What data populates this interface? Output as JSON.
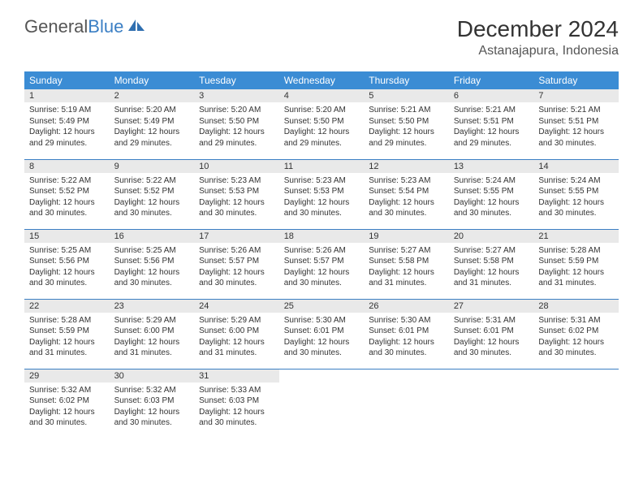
{
  "brand": {
    "part1": "General",
    "part2": "Blue"
  },
  "title": "December 2024",
  "location": "Astanajapura, Indonesia",
  "colors": {
    "header_bg": "#3b8cd4",
    "daynum_bg": "#e9e9e9",
    "rule": "#3b7fc4"
  },
  "fonts": {
    "title_pt": 28,
    "location_pt": 16,
    "weekday_pt": 12,
    "daynum_pt": 11,
    "body_pt": 10
  },
  "weekdays": [
    "Sunday",
    "Monday",
    "Tuesday",
    "Wednesday",
    "Thursday",
    "Friday",
    "Saturday"
  ],
  "weeks": [
    [
      {
        "n": "1",
        "sr": "Sunrise: 5:19 AM",
        "ss": "Sunset: 5:49 PM",
        "d1": "Daylight: 12 hours",
        "d2": "and 29 minutes."
      },
      {
        "n": "2",
        "sr": "Sunrise: 5:20 AM",
        "ss": "Sunset: 5:49 PM",
        "d1": "Daylight: 12 hours",
        "d2": "and 29 minutes."
      },
      {
        "n": "3",
        "sr": "Sunrise: 5:20 AM",
        "ss": "Sunset: 5:50 PM",
        "d1": "Daylight: 12 hours",
        "d2": "and 29 minutes."
      },
      {
        "n": "4",
        "sr": "Sunrise: 5:20 AM",
        "ss": "Sunset: 5:50 PM",
        "d1": "Daylight: 12 hours",
        "d2": "and 29 minutes."
      },
      {
        "n": "5",
        "sr": "Sunrise: 5:21 AM",
        "ss": "Sunset: 5:50 PM",
        "d1": "Daylight: 12 hours",
        "d2": "and 29 minutes."
      },
      {
        "n": "6",
        "sr": "Sunrise: 5:21 AM",
        "ss": "Sunset: 5:51 PM",
        "d1": "Daylight: 12 hours",
        "d2": "and 29 minutes."
      },
      {
        "n": "7",
        "sr": "Sunrise: 5:21 AM",
        "ss": "Sunset: 5:51 PM",
        "d1": "Daylight: 12 hours",
        "d2": "and 30 minutes."
      }
    ],
    [
      {
        "n": "8",
        "sr": "Sunrise: 5:22 AM",
        "ss": "Sunset: 5:52 PM",
        "d1": "Daylight: 12 hours",
        "d2": "and 30 minutes."
      },
      {
        "n": "9",
        "sr": "Sunrise: 5:22 AM",
        "ss": "Sunset: 5:52 PM",
        "d1": "Daylight: 12 hours",
        "d2": "and 30 minutes."
      },
      {
        "n": "10",
        "sr": "Sunrise: 5:23 AM",
        "ss": "Sunset: 5:53 PM",
        "d1": "Daylight: 12 hours",
        "d2": "and 30 minutes."
      },
      {
        "n": "11",
        "sr": "Sunrise: 5:23 AM",
        "ss": "Sunset: 5:53 PM",
        "d1": "Daylight: 12 hours",
        "d2": "and 30 minutes."
      },
      {
        "n": "12",
        "sr": "Sunrise: 5:23 AM",
        "ss": "Sunset: 5:54 PM",
        "d1": "Daylight: 12 hours",
        "d2": "and 30 minutes."
      },
      {
        "n": "13",
        "sr": "Sunrise: 5:24 AM",
        "ss": "Sunset: 5:55 PM",
        "d1": "Daylight: 12 hours",
        "d2": "and 30 minutes."
      },
      {
        "n": "14",
        "sr": "Sunrise: 5:24 AM",
        "ss": "Sunset: 5:55 PM",
        "d1": "Daylight: 12 hours",
        "d2": "and 30 minutes."
      }
    ],
    [
      {
        "n": "15",
        "sr": "Sunrise: 5:25 AM",
        "ss": "Sunset: 5:56 PM",
        "d1": "Daylight: 12 hours",
        "d2": "and 30 minutes."
      },
      {
        "n": "16",
        "sr": "Sunrise: 5:25 AM",
        "ss": "Sunset: 5:56 PM",
        "d1": "Daylight: 12 hours",
        "d2": "and 30 minutes."
      },
      {
        "n": "17",
        "sr": "Sunrise: 5:26 AM",
        "ss": "Sunset: 5:57 PM",
        "d1": "Daylight: 12 hours",
        "d2": "and 30 minutes."
      },
      {
        "n": "18",
        "sr": "Sunrise: 5:26 AM",
        "ss": "Sunset: 5:57 PM",
        "d1": "Daylight: 12 hours",
        "d2": "and 30 minutes."
      },
      {
        "n": "19",
        "sr": "Sunrise: 5:27 AM",
        "ss": "Sunset: 5:58 PM",
        "d1": "Daylight: 12 hours",
        "d2": "and 31 minutes."
      },
      {
        "n": "20",
        "sr": "Sunrise: 5:27 AM",
        "ss": "Sunset: 5:58 PM",
        "d1": "Daylight: 12 hours",
        "d2": "and 31 minutes."
      },
      {
        "n": "21",
        "sr": "Sunrise: 5:28 AM",
        "ss": "Sunset: 5:59 PM",
        "d1": "Daylight: 12 hours",
        "d2": "and 31 minutes."
      }
    ],
    [
      {
        "n": "22",
        "sr": "Sunrise: 5:28 AM",
        "ss": "Sunset: 5:59 PM",
        "d1": "Daylight: 12 hours",
        "d2": "and 31 minutes."
      },
      {
        "n": "23",
        "sr": "Sunrise: 5:29 AM",
        "ss": "Sunset: 6:00 PM",
        "d1": "Daylight: 12 hours",
        "d2": "and 31 minutes."
      },
      {
        "n": "24",
        "sr": "Sunrise: 5:29 AM",
        "ss": "Sunset: 6:00 PM",
        "d1": "Daylight: 12 hours",
        "d2": "and 31 minutes."
      },
      {
        "n": "25",
        "sr": "Sunrise: 5:30 AM",
        "ss": "Sunset: 6:01 PM",
        "d1": "Daylight: 12 hours",
        "d2": "and 30 minutes."
      },
      {
        "n": "26",
        "sr": "Sunrise: 5:30 AM",
        "ss": "Sunset: 6:01 PM",
        "d1": "Daylight: 12 hours",
        "d2": "and 30 minutes."
      },
      {
        "n": "27",
        "sr": "Sunrise: 5:31 AM",
        "ss": "Sunset: 6:01 PM",
        "d1": "Daylight: 12 hours",
        "d2": "and 30 minutes."
      },
      {
        "n": "28",
        "sr": "Sunrise: 5:31 AM",
        "ss": "Sunset: 6:02 PM",
        "d1": "Daylight: 12 hours",
        "d2": "and 30 minutes."
      }
    ],
    [
      {
        "n": "29",
        "sr": "Sunrise: 5:32 AM",
        "ss": "Sunset: 6:02 PM",
        "d1": "Daylight: 12 hours",
        "d2": "and 30 minutes."
      },
      {
        "n": "30",
        "sr": "Sunrise: 5:32 AM",
        "ss": "Sunset: 6:03 PM",
        "d1": "Daylight: 12 hours",
        "d2": "and 30 minutes."
      },
      {
        "n": "31",
        "sr": "Sunrise: 5:33 AM",
        "ss": "Sunset: 6:03 PM",
        "d1": "Daylight: 12 hours",
        "d2": "and 30 minutes."
      },
      {
        "empty": true
      },
      {
        "empty": true
      },
      {
        "empty": true
      },
      {
        "empty": true
      }
    ]
  ]
}
